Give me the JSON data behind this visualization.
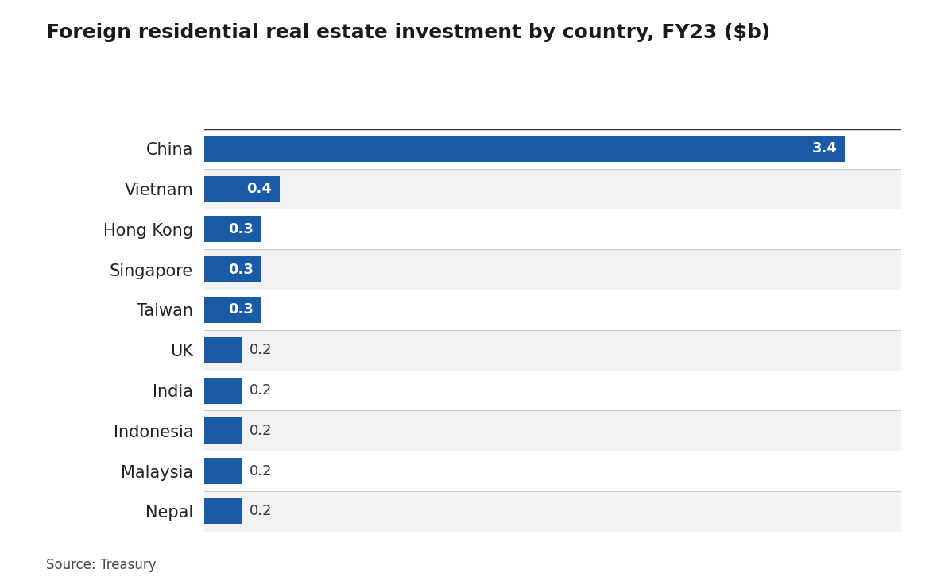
{
  "title": "Foreign residential real estate investment by country, FY23 ($b)",
  "source": "Source: Treasury",
  "categories": [
    "China",
    "Vietnam",
    "Hong Kong",
    "Singapore",
    "Taiwan",
    "UK",
    "India",
    "Indonesia",
    "Malaysia",
    "Nepal"
  ],
  "values": [
    3.4,
    0.4,
    0.3,
    0.3,
    0.3,
    0.2,
    0.2,
    0.2,
    0.2,
    0.2
  ],
  "bar_color": "#1a5ba6",
  "label_color_inside": "#ffffff",
  "label_color_outside": "#333333",
  "inside_threshold": 0.28,
  "background_color": "#ffffff",
  "row_color_odd": "#ffffff",
  "row_color_even": "#f2f2f4",
  "divider_color": "#cccccc",
  "top_line_color": "#333333",
  "title_fontsize": 18,
  "label_fontsize": 13,
  "category_fontsize": 15,
  "source_fontsize": 12,
  "xlim": [
    0,
    3.7
  ]
}
